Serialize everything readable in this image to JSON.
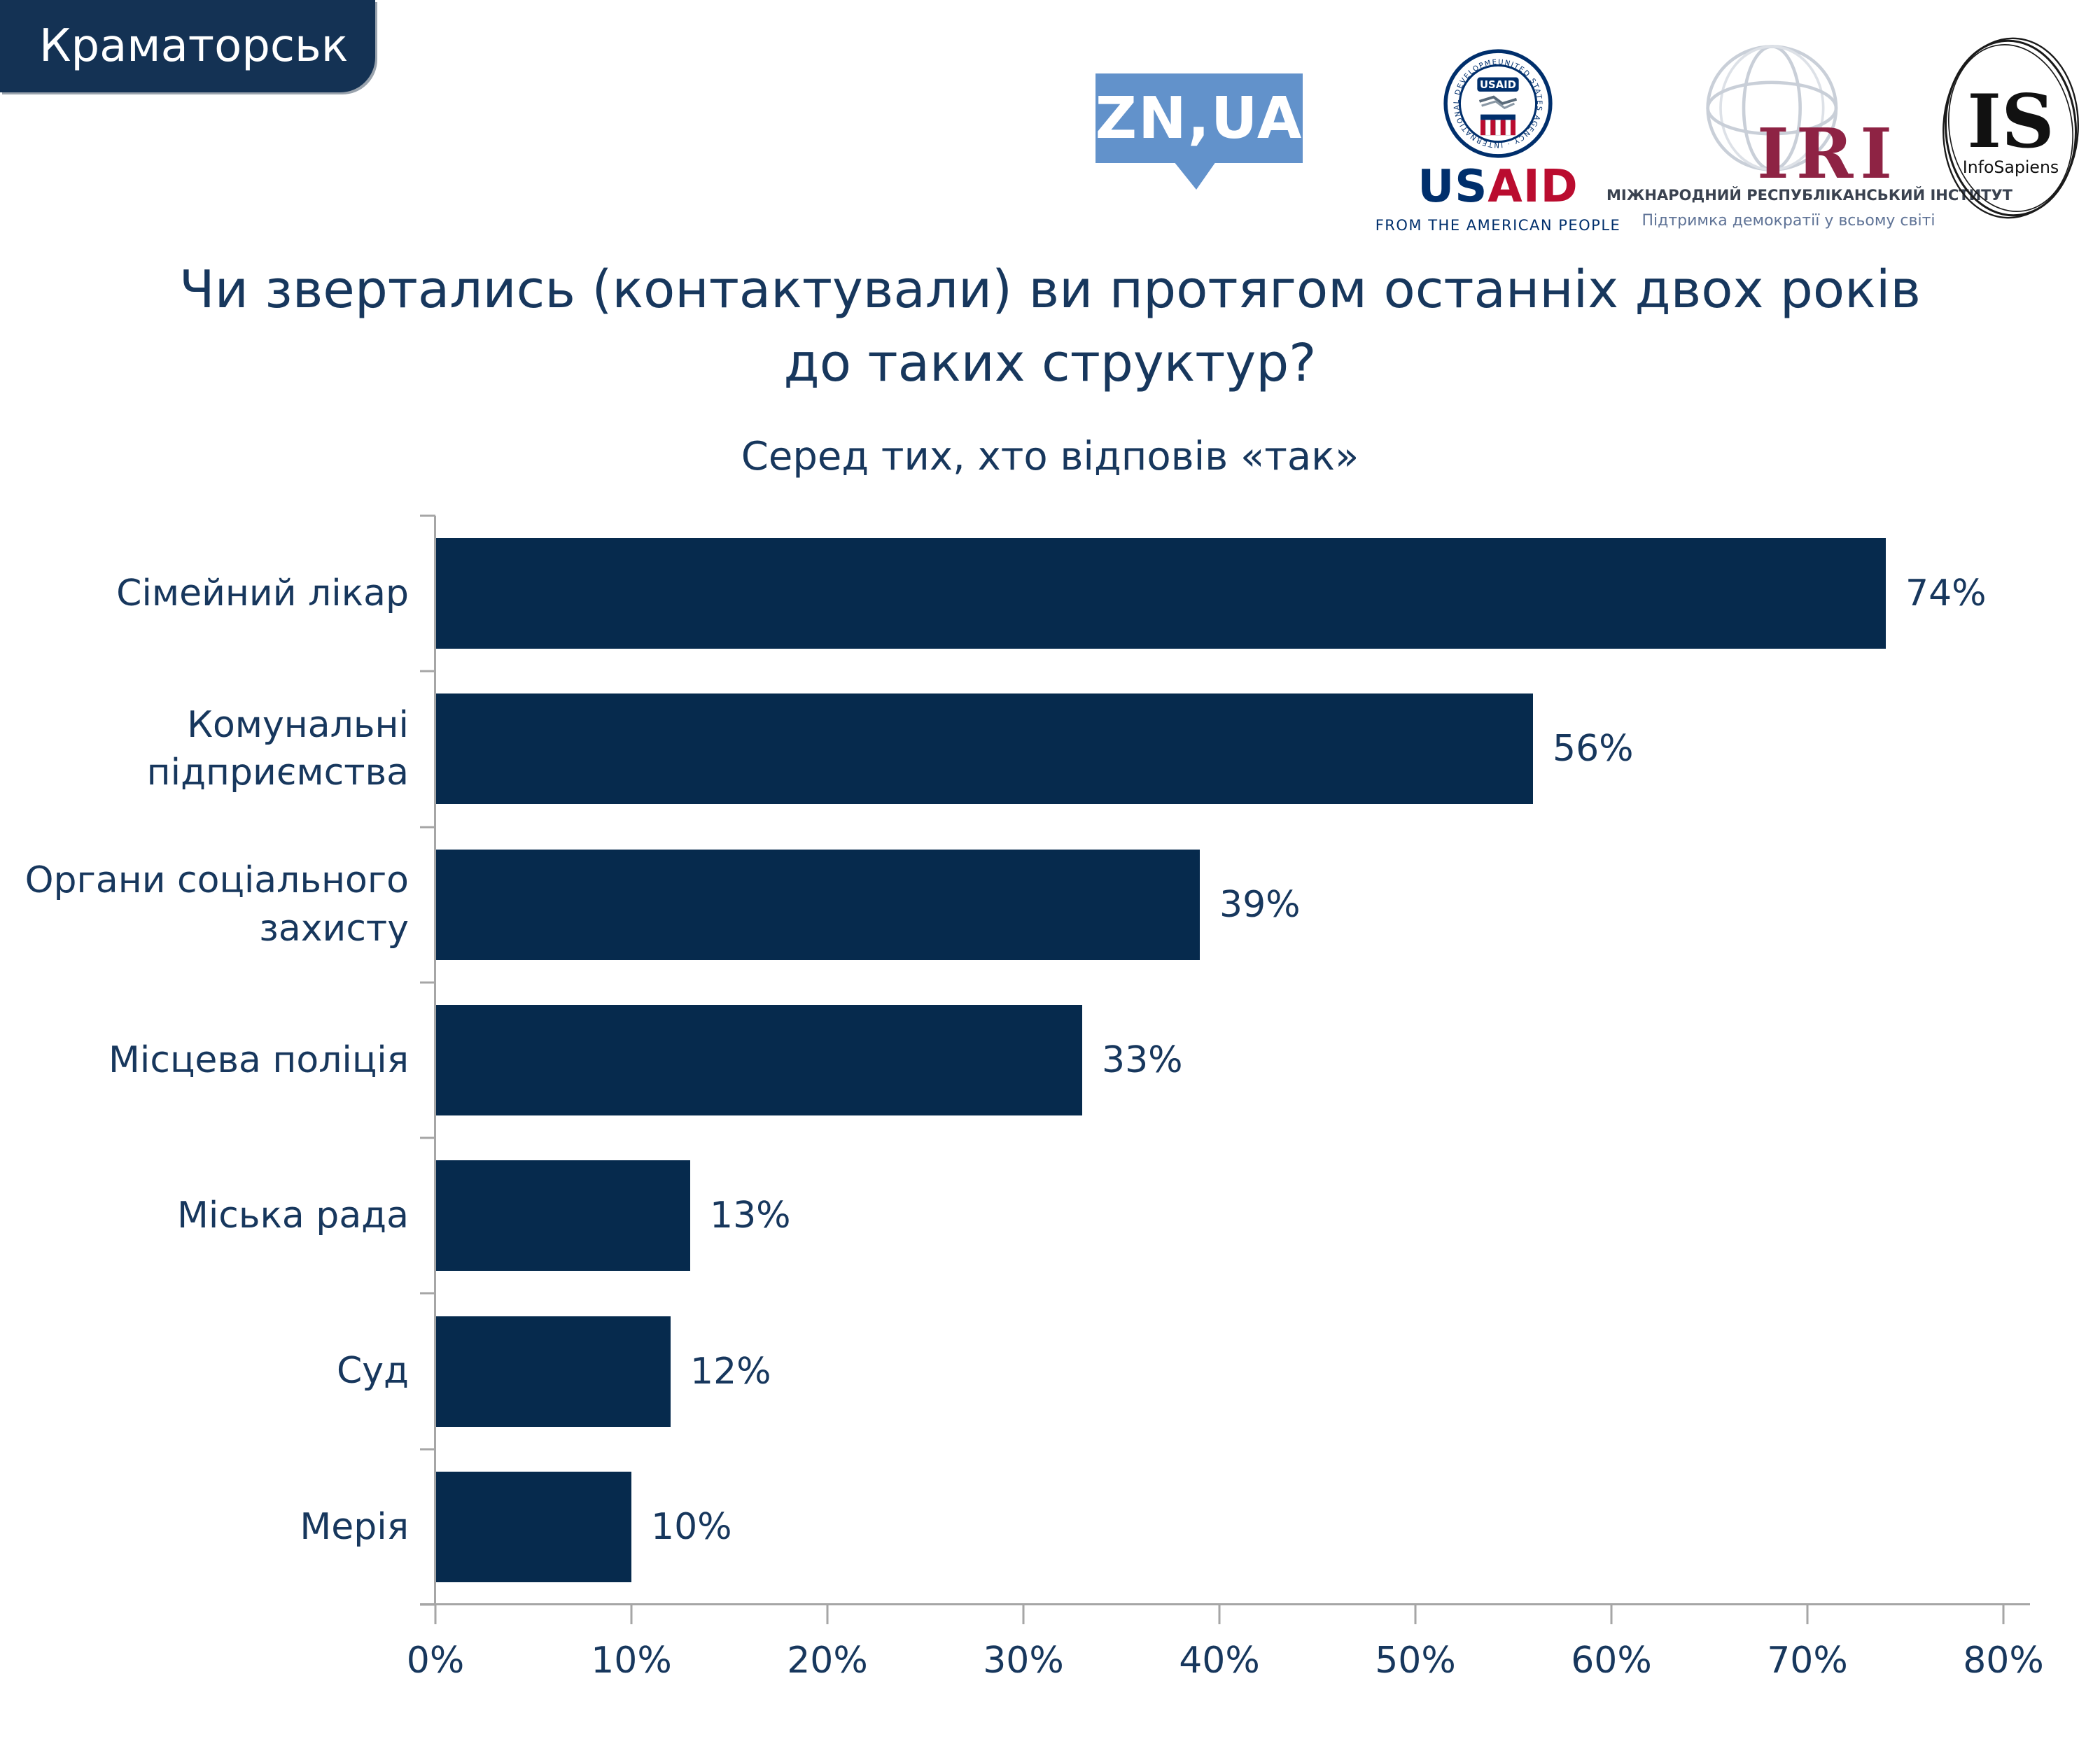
{
  "page": {
    "city_badge": "Краматорськ"
  },
  "header_logos": {
    "znua": {
      "text": "ZN,UA",
      "brand_color": "#6292cb"
    },
    "usaid": {
      "seal_ring_text": "UNITED STATES AGENCY · INTERNATIONAL DEVELOPMENT",
      "seal_label": "USAID",
      "wordmark_us": "US",
      "wordmark_aid": "AID",
      "tagline": "FROM THE AMERICAN PEOPLE",
      "navy": "#002f6c",
      "red": "#ba0c2f"
    },
    "iri": {
      "acronym": "IRI",
      "line1": "МІЖНАРОДНИЙ РЕСПУБЛІКАНСЬКИЙ ІНСТИТУТ",
      "line2": "Підтримка демократії у всьому світі",
      "maroon": "#8e2344"
    },
    "infosapiens": {
      "acronym": "IS",
      "name": "InfoSapiens"
    }
  },
  "chart_data": {
    "type": "bar",
    "orientation": "horizontal",
    "title": "Чи звертались (контактували) ви протягом останніх двох років\nдо таких структур?",
    "subtitle": "Серед тих, хто відповів «так»",
    "categories": [
      "Сімейний лікар",
      "Комунальні\nпідприємства",
      "Органи соціального\nзахисту",
      "Місцева поліція",
      "Міська рада",
      "Суд",
      "Мерія"
    ],
    "values": [
      74,
      56,
      39,
      33,
      13,
      12,
      10
    ],
    "value_labels": [
      "74%",
      "56%",
      "39%",
      "33%",
      "13%",
      "12%",
      "10%"
    ],
    "xlim": [
      0,
      80
    ],
    "x_ticks": [
      "0%",
      "10%",
      "20%",
      "30%",
      "40%",
      "50%",
      "60%",
      "70%",
      "80%"
    ],
    "grid": "off",
    "legend": "none",
    "bar_color": "#062a4d",
    "text_color": "#17375d",
    "axis_color": "#a6a6a6"
  }
}
